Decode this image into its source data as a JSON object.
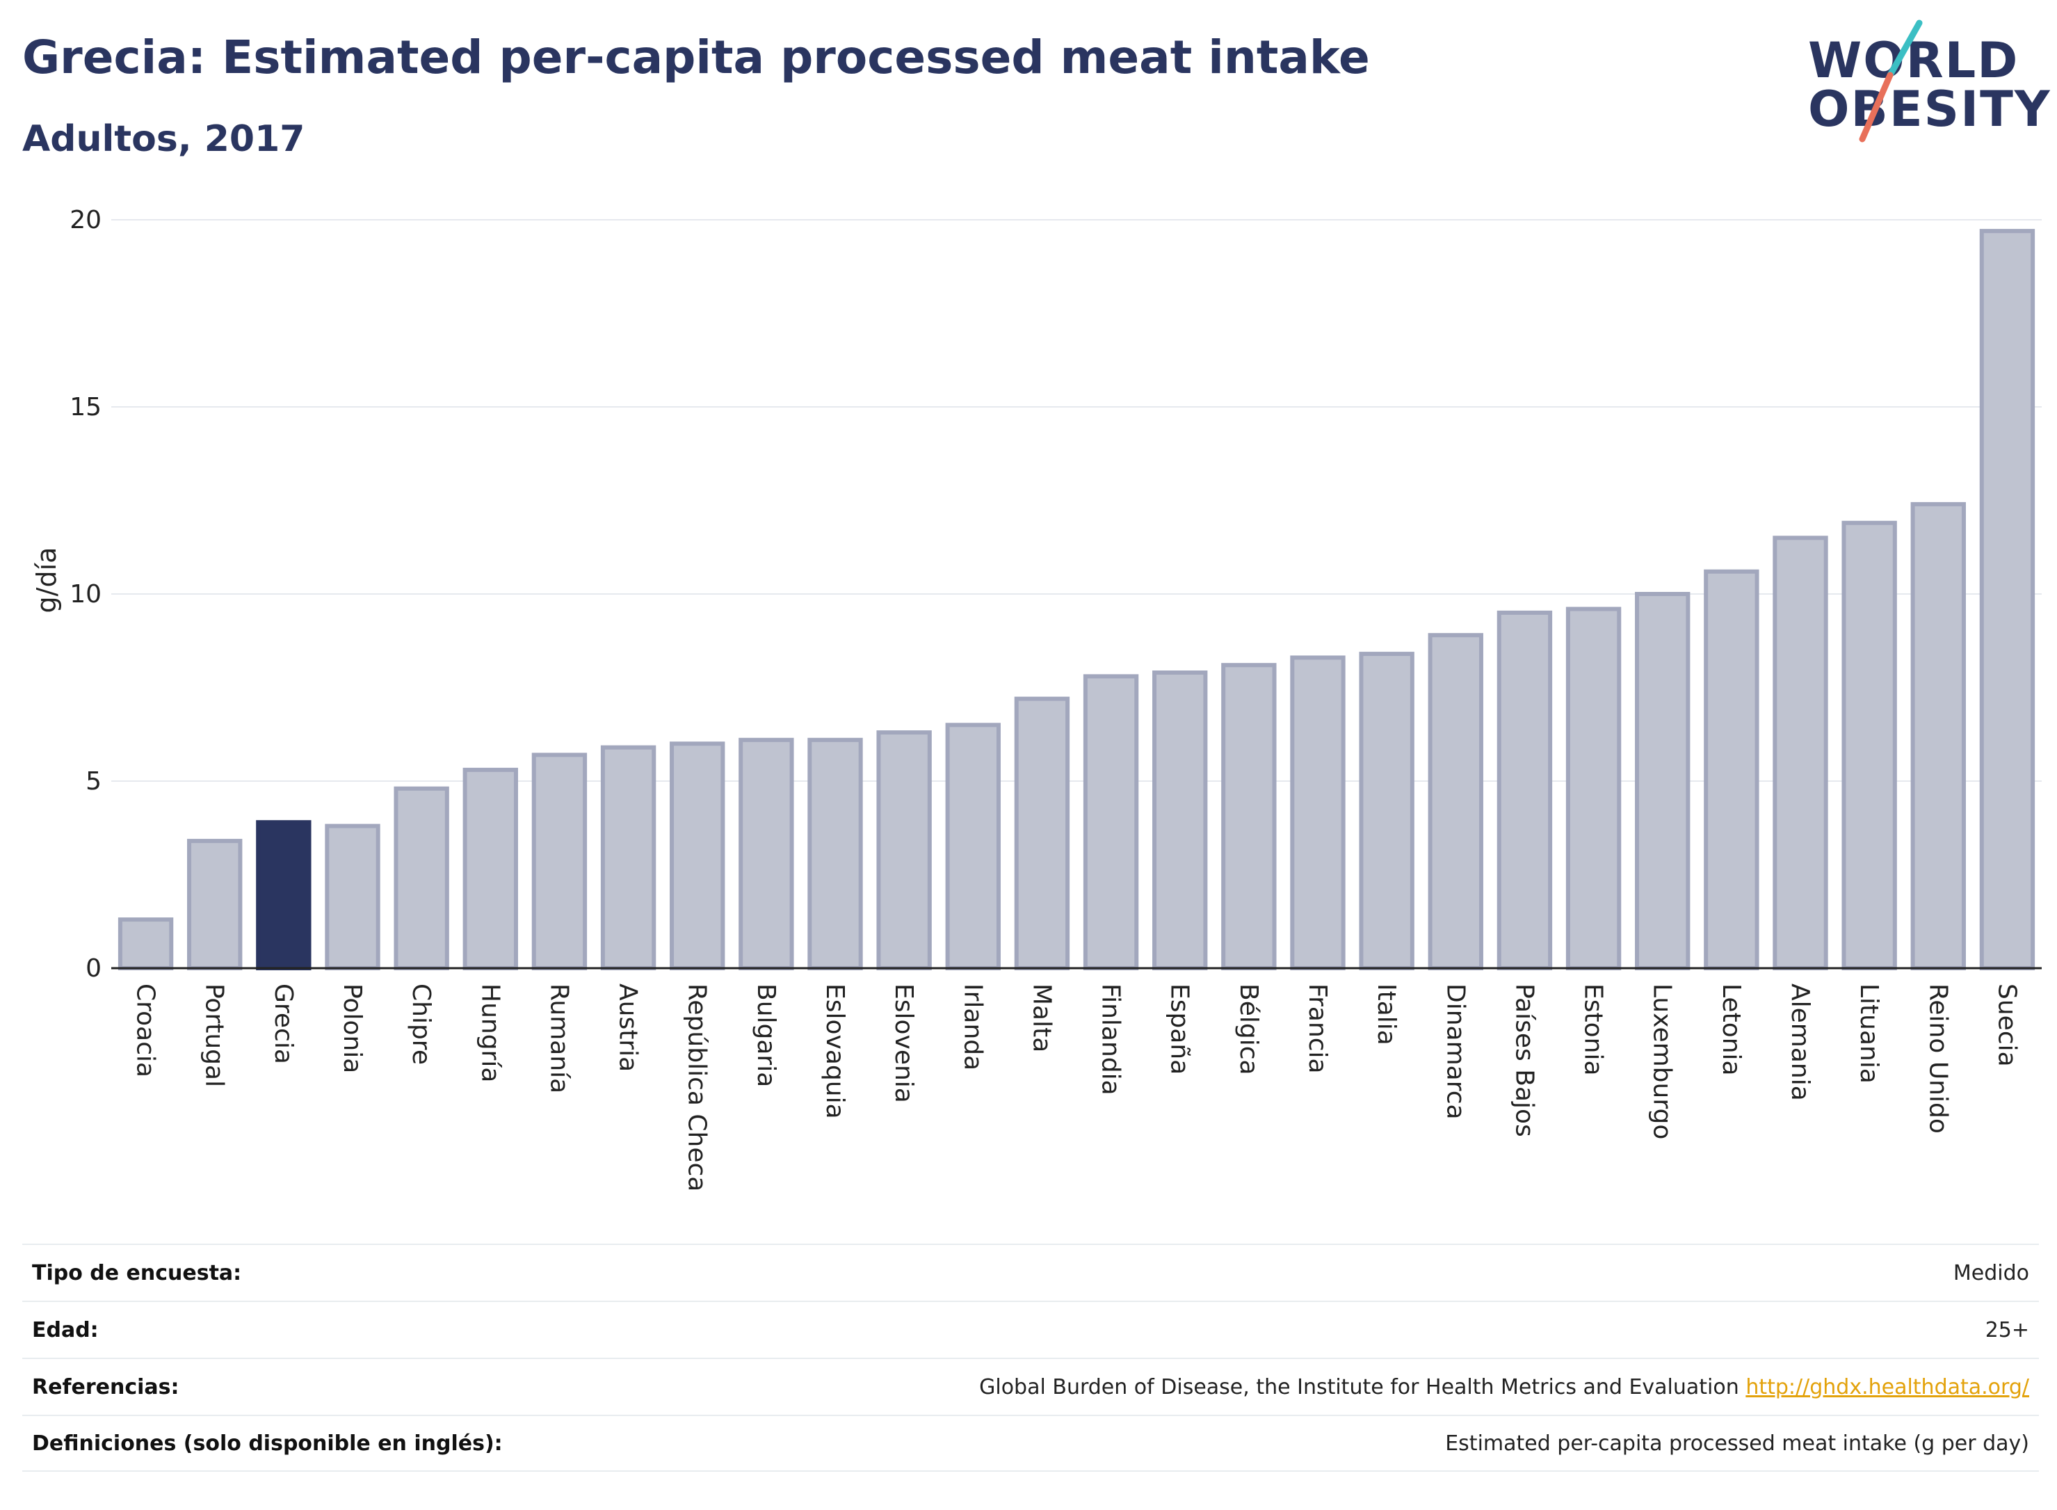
{
  "header": {
    "title": "Grecia: Estimated per-capita processed meat intake",
    "subtitle": "Adultos, 2017"
  },
  "logo": {
    "line1": "WORLD",
    "line2": "OBESITY",
    "accent_colors": [
      "#3bbfc4",
      "#e8705a"
    ]
  },
  "colors": {
    "highlight": "#2a3560",
    "bar_fill": "#bfc3d0",
    "bar_stroke": "#a2a7bd",
    "grid": "#e6e9ee",
    "link": "#e3a20b"
  },
  "chart_data": {
    "type": "bar",
    "title": "Grecia: Estimated per-capita processed meat intake",
    "subtitle": "Adultos, 2017",
    "xlabel": "",
    "ylabel": "g/día",
    "ylim": [
      0,
      20
    ],
    "yticks": [
      0,
      5,
      10,
      15,
      20
    ],
    "grid": true,
    "highlight": "Grecia",
    "categories": [
      "Croacia",
      "Portugal",
      "Grecia",
      "Polonia",
      "Chipre",
      "Hungría",
      "Rumanía",
      "Austria",
      "República Checa",
      "Bulgaria",
      "Eslovaquia",
      "Eslovenia",
      "Irlanda",
      "Malta",
      "Finlandia",
      "España",
      "Bélgica",
      "Francia",
      "Italia",
      "Dinamarca",
      "Países Bajos",
      "Estonia",
      "Luxemburgo",
      "Letonia",
      "Alemania",
      "Lituania",
      "Reino Unido",
      "Suecia"
    ],
    "values": [
      1.3,
      3.4,
      3.9,
      3.8,
      4.8,
      5.3,
      5.7,
      5.9,
      6.0,
      6.1,
      6.1,
      6.3,
      6.5,
      7.2,
      7.8,
      7.9,
      8.1,
      8.3,
      8.4,
      8.9,
      9.5,
      9.6,
      10.0,
      10.6,
      11.5,
      11.9,
      12.4,
      19.7
    ]
  },
  "info": {
    "rows": [
      {
        "label": "Tipo de encuesta:",
        "value": "Medido"
      },
      {
        "label": "Edad:",
        "value": "25+"
      },
      {
        "label": "Referencias:",
        "value": "Global Burden of Disease, the Institute for Health Metrics and Evaluation",
        "link": "http://ghdx.healthdata.org/"
      },
      {
        "label": "Definiciones (solo disponible en inglés):",
        "value": "Estimated per-capita processed meat intake (g per day)"
      }
    ]
  }
}
